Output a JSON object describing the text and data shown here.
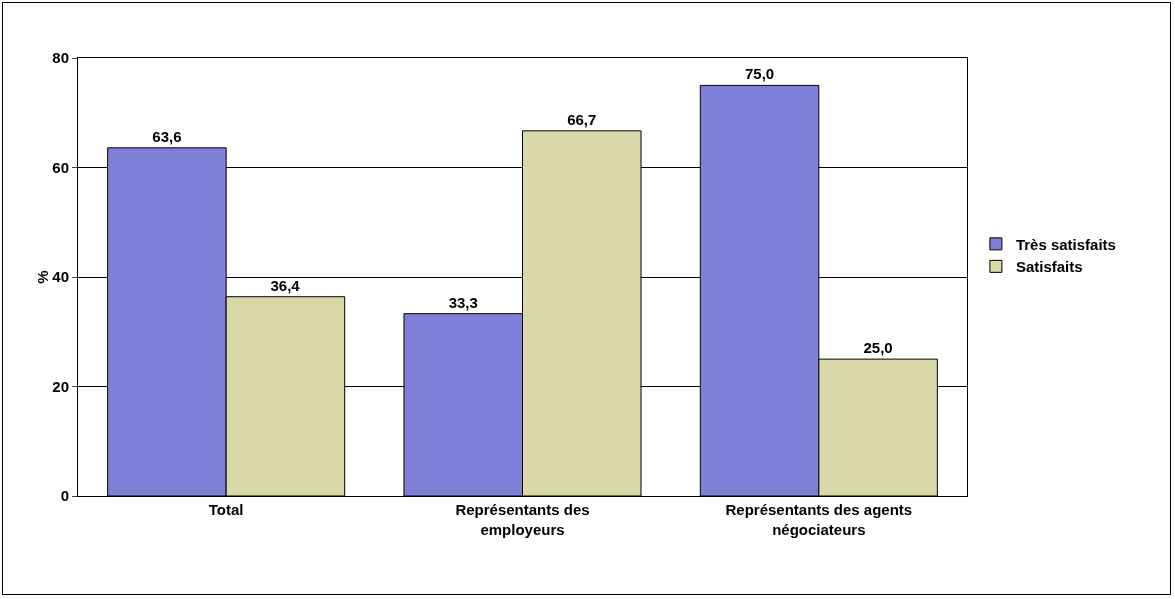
{
  "chart_data": {
    "type": "bar",
    "ylabel": "%",
    "categories": [
      "Total",
      "Représentants des employeurs",
      "Représentants des agents négociateurs"
    ],
    "series": [
      {
        "name": "Très satisfaits",
        "color": "#7f7fd8",
        "values": [
          63.6,
          33.3,
          75.0
        ],
        "value_labels": [
          "63,6",
          "33,3",
          "75,0"
        ]
      },
      {
        "name": "Satisfaits",
        "color": "#d8d8a8",
        "values": [
          36.4,
          66.7,
          25.0
        ],
        "value_labels": [
          "36,4",
          "66,7",
          "25,0"
        ]
      }
    ],
    "ylim": [
      0,
      80
    ],
    "yticks": [
      0,
      20,
      40,
      60,
      80
    ],
    "grid": "y",
    "legend": "right"
  }
}
